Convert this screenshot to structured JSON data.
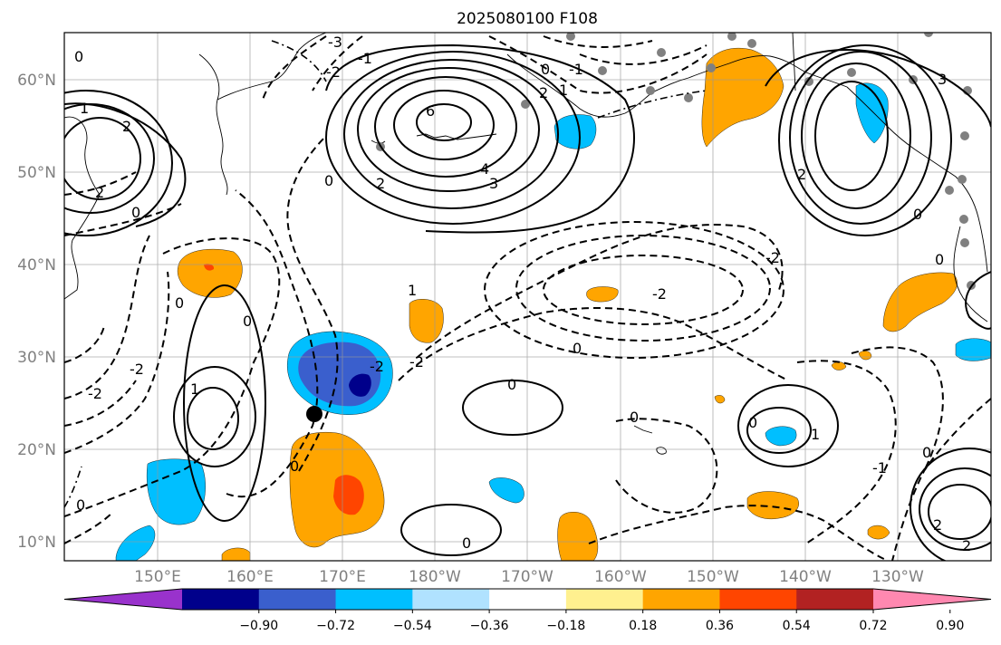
{
  "title": "2025080100 F108",
  "map": {
    "lat_labels": [
      "60°N",
      "50°N",
      "40°N",
      "30°N",
      "20°N",
      "10°N"
    ],
    "lon_labels": [
      "150°E",
      "160°E",
      "170°E",
      "180°W",
      "170°W",
      "160°W",
      "150°W",
      "140°W",
      "130°W"
    ],
    "contour_labels": [
      "-3",
      "-2",
      "-1",
      "0",
      "1",
      "2",
      "3",
      "4",
      "6"
    ],
    "contour_color": "#000000",
    "station_marker_color": "#808080",
    "storm_marker_color": "#000000"
  },
  "colorbar": {
    "tick_labels": [
      "−0.90",
      "−0.72",
      "−0.54",
      "−0.36",
      "−0.18",
      "0.18",
      "0.36",
      "0.54",
      "0.72",
      "0.90"
    ],
    "colors": [
      "#9932cc",
      "#00008b",
      "#3a5fcd",
      "#00bfff",
      "#b0e2ff",
      "#ffffff",
      "#fff08f",
      "#ffa500",
      "#ff4500",
      "#b22222",
      "#ff88b0"
    ]
  }
}
